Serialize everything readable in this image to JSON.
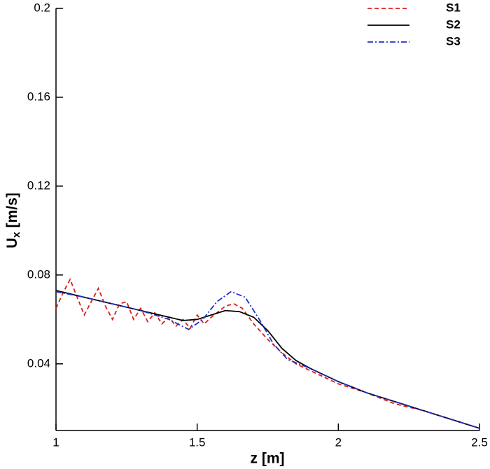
{
  "chart_data": {
    "type": "line",
    "xlabel": "z [m]",
    "ylabel": [
      "U",
      "x",
      " [m/s]"
    ],
    "xlim": [
      1,
      2.5
    ],
    "ylim": [
      0.01,
      0.2
    ],
    "xticks": [
      1,
      1.5,
      2,
      2.5
    ],
    "yticks": [
      0.04,
      0.08,
      0.12,
      0.16,
      0.2
    ],
    "legend": "top-right",
    "series": [
      {
        "name": "S1",
        "color": "#d62020",
        "dash": "dashed",
        "x": [
          1.0,
          1.025,
          1.05,
          1.075,
          1.1,
          1.125,
          1.15,
          1.175,
          1.2,
          1.225,
          1.25,
          1.275,
          1.3,
          1.325,
          1.35,
          1.375,
          1.4,
          1.425,
          1.45,
          1.475,
          1.5,
          1.525,
          1.55,
          1.6,
          1.63,
          1.66,
          1.7,
          1.75,
          1.8,
          1.85,
          1.9,
          2.0,
          2.1,
          2.2,
          2.3,
          2.4,
          2.5
        ],
        "values": [
          0.065,
          0.072,
          0.078,
          0.07,
          0.062,
          0.068,
          0.074,
          0.066,
          0.06,
          0.067,
          0.068,
          0.06,
          0.065,
          0.059,
          0.063,
          0.058,
          0.061,
          0.057,
          0.06,
          0.056,
          0.062,
          0.058,
          0.061,
          0.066,
          0.067,
          0.065,
          0.058,
          0.051,
          0.045,
          0.04,
          0.037,
          0.031,
          0.027,
          0.022,
          0.019,
          0.015,
          0.011
        ]
      },
      {
        "name": "S2",
        "color": "#000000",
        "dash": "solid",
        "x": [
          1.0,
          1.1,
          1.2,
          1.3,
          1.4,
          1.45,
          1.5,
          1.55,
          1.6,
          1.65,
          1.7,
          1.75,
          1.8,
          1.85,
          1.9,
          2.0,
          2.1,
          2.2,
          2.3,
          2.4,
          2.5
        ],
        "values": [
          0.073,
          0.07,
          0.067,
          0.064,
          0.061,
          0.0595,
          0.06,
          0.062,
          0.064,
          0.0635,
          0.061,
          0.055,
          0.047,
          0.0415,
          0.038,
          0.032,
          0.027,
          0.023,
          0.019,
          0.015,
          0.011
        ]
      },
      {
        "name": "S3",
        "color": "#2030c8",
        "dash": "dashdot",
        "x": [
          1.0,
          1.1,
          1.2,
          1.3,
          1.4,
          1.47,
          1.52,
          1.57,
          1.62,
          1.67,
          1.72,
          1.77,
          1.82,
          1.9,
          2.0,
          2.1,
          2.2,
          2.3,
          2.4,
          2.5
        ],
        "values": [
          0.0725,
          0.07,
          0.067,
          0.064,
          0.06,
          0.0555,
          0.06,
          0.068,
          0.0725,
          0.07,
          0.06,
          0.049,
          0.042,
          0.038,
          0.032,
          0.027,
          0.023,
          0.019,
          0.015,
          0.011
        ]
      }
    ]
  }
}
